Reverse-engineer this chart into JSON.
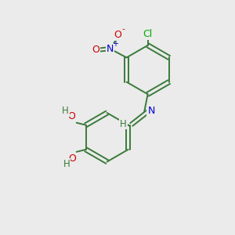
{
  "bg_color": "#ebebeb",
  "bond_color": "#3a7a3a",
  "atom_colors": {
    "N": "#0000cd",
    "O": "#cc0000",
    "Cl": "#00aa00",
    "H": "#3a7a3a"
  }
}
